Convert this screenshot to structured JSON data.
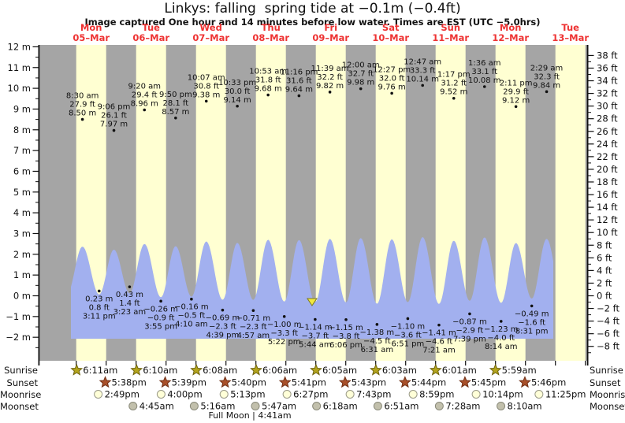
{
  "title": "Linkys: falling  spring tide at −0.1m (−0.4ft)",
  "subtitle": "Image captured One hour and 14 minutes before low water. Times are EST (UTC −5.0hrs)",
  "full_moon_caption": "Full Moon | 4:41am",
  "colors": {
    "day_band": "#ffffd2",
    "night_band": "#a5a5a5",
    "tide_fill": "#a2b0ef",
    "header_red": "#ee3333",
    "marker_yellow": "#f2e93f",
    "marker_outline": "#7d7a1e",
    "sunrise_star": "#b3a41c",
    "sunrise_star_outline": "#6f6410",
    "sunset_star": "#a9502a",
    "sunset_star_outline": "#703016",
    "moonrise_circle": "#ffffd8",
    "moonrise_outline": "#999988",
    "moonset_circle": "#c2c0ac",
    "moonset_outline": "#8a8a7a",
    "text": "#111111"
  },
  "chart_data": {
    "type": "area",
    "title": "Linkys: falling  spring tide at −0.1m (−0.4ft)",
    "days": [
      {
        "name": "Mon",
        "date": "05–Mar"
      },
      {
        "name": "Tue",
        "date": "06–Mar"
      },
      {
        "name": "Wed",
        "date": "07–Mar"
      },
      {
        "name": "Thu",
        "date": "08–Mar"
      },
      {
        "name": "Fri",
        "date": "09–Mar"
      },
      {
        "name": "Sat",
        "date": "10–Mar"
      },
      {
        "name": "Sun",
        "date": "11–Mar"
      },
      {
        "name": "Mon",
        "date": "12–Mar"
      },
      {
        "name": "Tue",
        "date": "13–Mar"
      }
    ],
    "y_axis_left": {
      "unit": "m",
      "min": -2,
      "max": 12,
      "step": 1,
      "tick_labels": [
        "12 m",
        "11 m",
        "10 m",
        "9 m",
        "8 m",
        "7 m",
        "6 m",
        "5 m",
        "4 m",
        "3 m",
        "2 m",
        "1 m",
        "0 m",
        "−1 m",
        "−2 m"
      ]
    },
    "y_axis_right": {
      "unit": "ft",
      "min": -8,
      "max": 38,
      "step": 2,
      "tick_labels": [
        "38 ft",
        "36 ft",
        "34 ft",
        "32 ft",
        "30 ft",
        "28 ft",
        "26 ft",
        "24 ft",
        "22 ft",
        "20 ft",
        "18 ft",
        "16 ft",
        "14 ft",
        "12 ft",
        "10 ft",
        "8 ft",
        "6 ft",
        "4 ft",
        "2 ft",
        "0 ft",
        "−2 ft",
        "−4 ft",
        "−6 ft",
        "−8 ft"
      ]
    },
    "tide_events": [
      {
        "day": 0,
        "time": "8:30 am",
        "height_ft": "27.9",
        "height_m": "8.50",
        "type": "high"
      },
      {
        "day": 0,
        "time": "3:11 pm",
        "height_ft": "0.8",
        "height_m": "0.23",
        "type": "low"
      },
      {
        "day": 0,
        "time": "9:06 pm",
        "height_ft": "26.1",
        "height_m": "7.97",
        "type": "high"
      },
      {
        "day": 1,
        "time": "3:23 am",
        "height_ft": "1.4",
        "height_m": "0.43",
        "type": "low"
      },
      {
        "day": 1,
        "time": "9:20 am",
        "height_ft": "29.4",
        "height_m": "8.96",
        "type": "high"
      },
      {
        "day": 1,
        "time": "3:55 pm",
        "height_ft": "−0.9",
        "height_m": "−0.26",
        "type": "low"
      },
      {
        "day": 1,
        "time": "9:50 pm",
        "height_ft": "28.1",
        "height_m": "8.57",
        "type": "high"
      },
      {
        "day": 2,
        "time": "4:10 am",
        "height_ft": "−0.5",
        "height_m": "−0.16",
        "type": "low"
      },
      {
        "day": 2,
        "time": "10:07 am",
        "height_ft": "30.8",
        "height_m": "9.38",
        "type": "high"
      },
      {
        "day": 2,
        "time": "4:39 pm",
        "height_ft": "−2.3",
        "height_m": "−0.69",
        "type": "low"
      },
      {
        "day": 2,
        "time": "10:33 pm",
        "height_ft": "30.0",
        "height_m": "9.14",
        "type": "high"
      },
      {
        "day": 3,
        "time": "4:57 am",
        "height_ft": "−2.3",
        "height_m": "−0.71",
        "type": "low"
      },
      {
        "day": 3,
        "time": "10:53 am",
        "height_ft": "31.8",
        "height_m": "9.68",
        "type": "high"
      },
      {
        "day": 3,
        "time": "5:22 pm",
        "height_ft": "−3.3",
        "height_m": "−1.00",
        "type": "low"
      },
      {
        "day": 3,
        "time": "11:16 pm",
        "height_ft": "31.6",
        "height_m": "9.64",
        "type": "high"
      },
      {
        "day": 4,
        "time": "5:44 am",
        "height_ft": "−3.7",
        "height_m": "−1.14",
        "type": "low"
      },
      {
        "day": 4,
        "time": "11:39 am",
        "height_ft": "32.2",
        "height_m": "9.82",
        "type": "high"
      },
      {
        "day": 4,
        "time": "6:06 pm",
        "height_ft": "−3.8",
        "height_m": "−1.15",
        "type": "low"
      },
      {
        "day": 5,
        "time": "12:00 am",
        "height_ft": "32.7",
        "height_m": "9.98",
        "type": "high"
      },
      {
        "day": 5,
        "time": "6:31 am",
        "height_ft": "−4.5",
        "height_m": "−1.38",
        "type": "low"
      },
      {
        "day": 5,
        "time": "12:27 pm",
        "height_ft": "32.0",
        "height_m": "9.76",
        "type": "high"
      },
      {
        "day": 5,
        "time": "6:51 pm",
        "height_ft": "−3.6",
        "height_m": "−1.10",
        "type": "low"
      },
      {
        "day": 6,
        "time": "12:47 am",
        "height_ft": "33.3",
        "height_m": "10.14",
        "type": "high"
      },
      {
        "day": 6,
        "time": "7:21 am",
        "height_ft": "−4.6",
        "height_m": "−1.41",
        "type": "low"
      },
      {
        "day": 6,
        "time": "1:17 pm",
        "height_ft": "31.2",
        "height_m": "9.52",
        "type": "high"
      },
      {
        "day": 6,
        "time": "7:39 pm",
        "height_ft": "−2.9",
        "height_m": "−0.87",
        "type": "low"
      },
      {
        "day": 7,
        "time": "1:36 am",
        "height_ft": "33.1",
        "height_m": "10.08",
        "type": "high"
      },
      {
        "day": 7,
        "time": "8:14 am",
        "height_ft": "−4.0",
        "height_m": "−1.23",
        "type": "low"
      },
      {
        "day": 7,
        "time": "2:11 pm",
        "height_ft": "29.9",
        "height_m": "9.12",
        "type": "high"
      },
      {
        "day": 7,
        "time": "8:31 pm",
        "height_ft": "−1.6",
        "height_m": "−0.49",
        "type": "low"
      },
      {
        "day": 8,
        "time": "2:29 am",
        "height_ft": "32.3",
        "height_m": "9.84",
        "type": "high"
      }
    ],
    "capture_marker": {
      "icon": "triangle-down-marker",
      "day": 4,
      "time": "4:30 am"
    }
  },
  "astro": {
    "rows": [
      {
        "label": "Sunrise",
        "icon": "sunrise-star-icon",
        "events": [
          {
            "day": 0,
            "time": "6:11am"
          },
          {
            "day": 1,
            "time": "6:10am"
          },
          {
            "day": 2,
            "time": "6:08am"
          },
          {
            "day": 3,
            "time": "6:06am"
          },
          {
            "day": 4,
            "time": "6:05am"
          },
          {
            "day": 5,
            "time": "6:03am"
          },
          {
            "day": 6,
            "time": "6:01am"
          },
          {
            "day": 7,
            "time": "5:59am"
          }
        ]
      },
      {
        "label": "Sunset",
        "icon": "sunset-star-icon",
        "events": [
          {
            "day": 0,
            "time": "5:38pm"
          },
          {
            "day": 1,
            "time": "5:39pm"
          },
          {
            "day": 2,
            "time": "5:40pm"
          },
          {
            "day": 3,
            "time": "5:41pm"
          },
          {
            "day": 4,
            "time": "5:43pm"
          },
          {
            "day": 5,
            "time": "5:44pm"
          },
          {
            "day": 6,
            "time": "5:45pm"
          },
          {
            "day": 7,
            "time": "5:46pm"
          }
        ]
      },
      {
        "label": "Moonrise",
        "icon": "moonrise-icon",
        "events": [
          {
            "day": 0,
            "time": "2:49pm"
          },
          {
            "day": 1,
            "time": "4:00pm"
          },
          {
            "day": 2,
            "time": "5:13pm"
          },
          {
            "day": 3,
            "time": "6:27pm"
          },
          {
            "day": 4,
            "time": "7:43pm"
          },
          {
            "day": 5,
            "time": "8:59pm"
          },
          {
            "day": 6,
            "time": "10:14pm"
          },
          {
            "day": 7,
            "time": "11:25pm"
          }
        ]
      },
      {
        "label": "Moonset",
        "icon": "moonset-icon",
        "events": [
          {
            "day": 1,
            "time": "4:45am"
          },
          {
            "day": 2,
            "time": "5:16am"
          },
          {
            "day": 3,
            "time": "5:47am"
          },
          {
            "day": 4,
            "time": "6:18am"
          },
          {
            "day": 5,
            "time": "6:51am"
          },
          {
            "day": 6,
            "time": "7:28am"
          },
          {
            "day": 7,
            "time": "8:10am"
          }
        ]
      }
    ]
  }
}
